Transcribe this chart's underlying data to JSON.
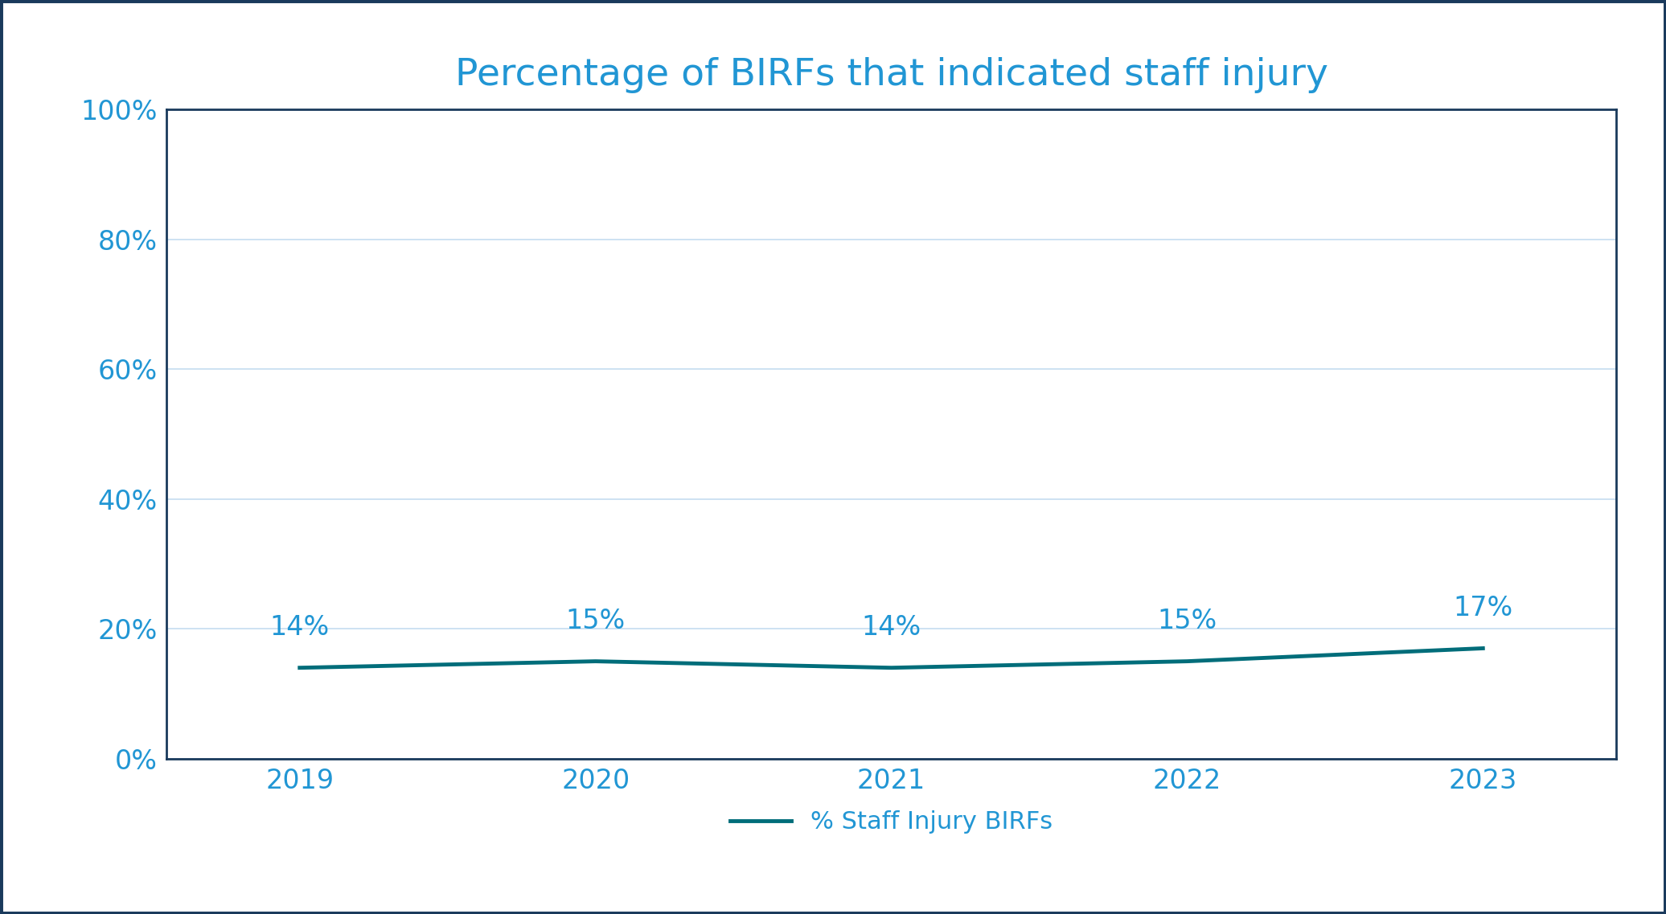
{
  "title": "Percentage of BIRFs that indicated staff injury",
  "years": [
    2019,
    2020,
    2021,
    2022,
    2023
  ],
  "values": [
    0.14,
    0.15,
    0.14,
    0.15,
    0.17
  ],
  "labels": [
    "14%",
    "15%",
    "14%",
    "15%",
    "17%"
  ],
  "line_color": "#006d7a",
  "title_color": "#2196d4",
  "tick_color": "#2196d4",
  "grid_color": "#c5ddf0",
  "background_color": "#ffffff",
  "outer_border_color": "#1a3a5c",
  "plot_border_color": "#1a3a5c",
  "legend_label": "% Staff Injury BIRFs",
  "ylim": [
    0,
    1.0
  ],
  "yticks": [
    0,
    0.2,
    0.4,
    0.6,
    0.8,
    1.0
  ],
  "ytick_labels": [
    "0%",
    "20%",
    "40%",
    "60%",
    "80%",
    "100%"
  ],
  "title_fontsize": 34,
  "tick_fontsize": 24,
  "legend_fontsize": 22,
  "line_width": 3.5,
  "annotation_fontsize": 24,
  "annotation_color": "#2196d4",
  "xlim_left": 2018.55,
  "xlim_right": 2023.45
}
